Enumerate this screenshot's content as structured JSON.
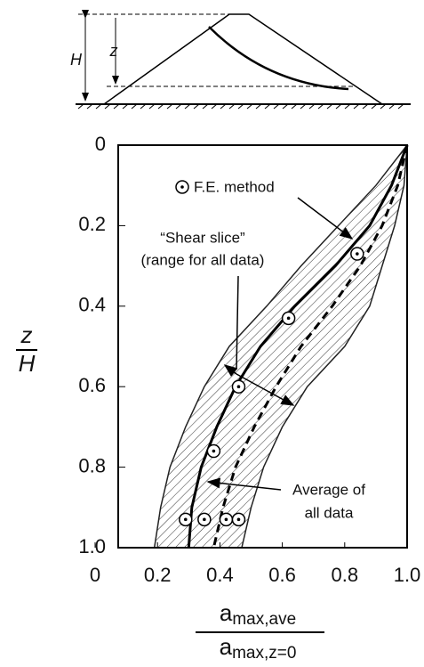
{
  "diagram": {
    "height_label": "H",
    "depth_label": "z"
  },
  "chart_data": {
    "type": "line",
    "inverted_y": true,
    "ylim": [
      0,
      1
    ],
    "yticks": [
      0,
      0.2,
      0.4,
      0.6,
      0.8,
      {
        "value": 1,
        "label": "1.0"
      }
    ],
    "xlim": [
      0,
      1
    ],
    "xticks": [
      0,
      0.2,
      0.4,
      0.6,
      0.8,
      {
        "value": 1,
        "label": "1.0"
      }
    ],
    "y_label": {
      "numerator": "z",
      "denominator": "H"
    },
    "x_label": {
      "numerator": "a",
      "numerator_sub": "max,ave",
      "denominator": "a",
      "denominator_sub": "max,z=0"
    },
    "z": [
      0,
      0.1,
      0.2,
      0.3,
      0.4,
      0.5,
      0.6,
      0.7,
      0.8,
      0.9,
      1.0
    ],
    "band": {
      "lower": [
        1.0,
        0.9,
        0.78,
        0.66,
        0.55,
        0.43,
        0.35,
        0.29,
        0.24,
        0.21,
        0.19
      ],
      "upper": [
        1.0,
        0.99,
        0.96,
        0.92,
        0.88,
        0.8,
        0.68,
        0.6,
        0.54,
        0.5,
        0.47
      ],
      "color": "#222"
    },
    "series": [
      {
        "style": "solid",
        "color": "#000",
        "x": [
          1.0,
          0.95,
          0.88,
          0.77,
          0.64,
          0.53,
          0.45,
          0.39,
          0.34,
          0.31,
          0.3
        ]
      },
      {
        "style": "dashed",
        "color": "#000",
        "x": [
          1.0,
          0.97,
          0.92,
          0.85,
          0.76,
          0.66,
          0.58,
          0.51,
          0.45,
          0.41,
          0.38
        ]
      }
    ],
    "points": {
      "name": "F.E. method",
      "x": [
        0.84,
        0.62,
        0.46,
        0.38,
        0.29,
        0.35,
        0.42,
        0.46
      ],
      "z": [
        0.27,
        0.43,
        0.6,
        0.76,
        0.93,
        0.93,
        0.93,
        0.93
      ]
    },
    "annotations": [
      "“Shear slice”",
      "(range for all data)",
      "Average of",
      "all data"
    ]
  }
}
